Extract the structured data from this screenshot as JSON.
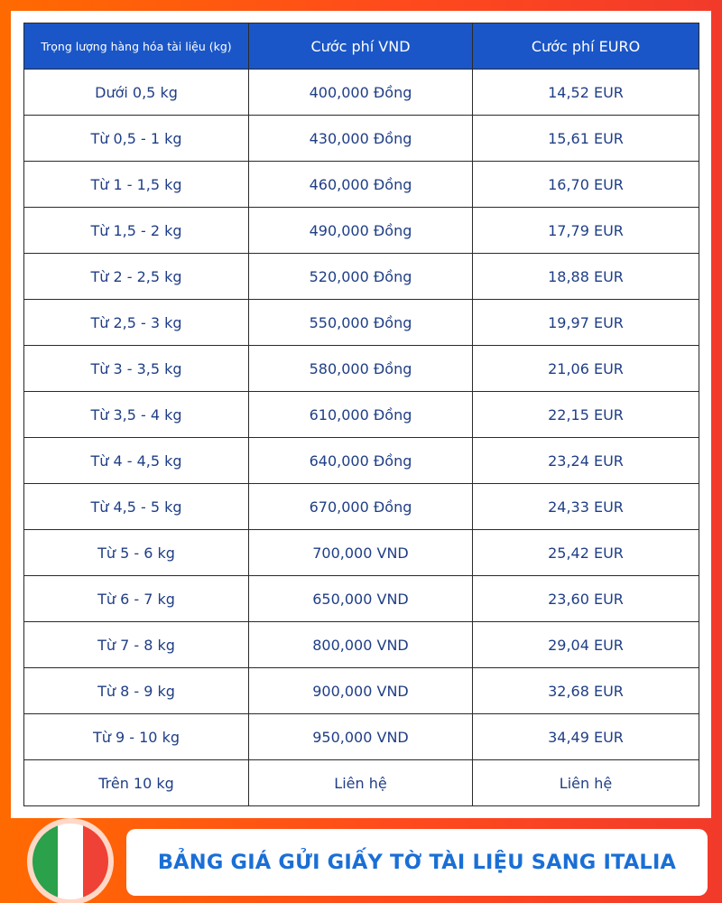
{
  "table": {
    "headers": [
      "Trọng lượng hàng hóa tài liệu (kg)",
      "Cước phí VND",
      "Cước phí EURO"
    ],
    "rows": [
      [
        "Dưới 0,5 kg",
        "400,000 Đồng",
        "14,52 EUR"
      ],
      [
        "Từ 0,5 - 1 kg",
        "430,000 Đồng",
        "15,61 EUR"
      ],
      [
        "Từ 1 - 1,5 kg",
        "460,000 Đồng",
        "16,70 EUR"
      ],
      [
        "Từ 1,5 - 2 kg",
        "490,000 Đồng",
        "17,79 EUR"
      ],
      [
        "Từ 2 - 2,5 kg",
        "520,000 Đồng",
        "18,88 EUR"
      ],
      [
        "Từ 2,5 - 3 kg",
        "550,000 Đồng",
        "19,97 EUR"
      ],
      [
        "Từ 3 - 3,5 kg",
        "580,000 Đồng",
        "21,06 EUR"
      ],
      [
        "Từ 3,5 - 4 kg",
        "610,000 Đồng",
        "22,15 EUR"
      ],
      [
        "Từ 4 - 4,5 kg",
        "640,000 Đồng",
        "23,24 EUR"
      ],
      [
        "Từ 4,5 - 5 kg",
        "670,000 Đồng",
        "24,33 EUR"
      ],
      [
        "Từ 5 - 6 kg",
        "700,000 VND",
        "25,42 EUR"
      ],
      [
        "Từ 6 - 7 kg",
        "650,000 VND",
        "23,60 EUR"
      ],
      [
        "Từ 7 - 8 kg",
        "800,000 VND",
        "29,04 EUR"
      ],
      [
        "Từ 8 - 9 kg",
        "900,000 VND",
        "32,68 EUR"
      ],
      [
        "Từ 9 - 10 kg",
        "950,000 VND",
        "34,49 EUR"
      ],
      [
        "Trên 10 kg",
        "Liên hệ",
        "Liên hệ"
      ]
    ]
  },
  "banner": {
    "title": "BẢNG GIÁ GỬI GIẤY TỜ TÀI LIỆU SANG ITALIA"
  },
  "flag": {
    "icon": "italy-flag-icon",
    "colors": [
      "#2aa14a",
      "#ffffff",
      "#ef4135"
    ]
  },
  "colors": {
    "header_bg": "#1a56c7",
    "cell_text": "#1f3e86",
    "banner_text": "#1a6fd6"
  }
}
